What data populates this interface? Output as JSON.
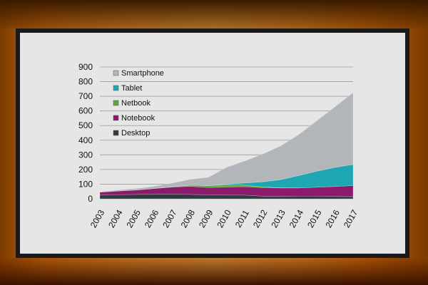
{
  "chart_data": {
    "type": "area",
    "stacked": true,
    "x": [
      "2003",
      "2004",
      "2005",
      "2006",
      "2007",
      "2008",
      "2009",
      "2010",
      "2011",
      "2012",
      "2013",
      "2014",
      "2015",
      "2016",
      "2017"
    ],
    "ylim": [
      0,
      900
    ],
    "yticks": [
      0,
      100,
      200,
      300,
      400,
      500,
      600,
      700,
      800,
      900
    ],
    "grid": true,
    "legend_position": "top-left",
    "series": [
      {
        "name": "Desktop",
        "color": "#2e3b40",
        "values": [
          25,
          28,
          30,
          32,
          32,
          30,
          27,
          25,
          25,
          18,
          18,
          17,
          17,
          16,
          15
        ]
      },
      {
        "name": "Notebook",
        "color": "#8b1a6a",
        "values": [
          20,
          25,
          30,
          38,
          48,
          55,
          50,
          55,
          58,
          58,
          56,
          57,
          62,
          68,
          75
        ]
      },
      {
        "name": "Netbook",
        "color": "#5ea83a",
        "values": [
          0,
          0,
          0,
          0,
          2,
          8,
          12,
          15,
          10,
          5,
          2,
          0,
          0,
          0,
          0
        ]
      },
      {
        "name": "Tablet",
        "color": "#1fa6b3",
        "values": [
          0,
          0,
          0,
          0,
          0,
          0,
          0,
          5,
          15,
          35,
          55,
          85,
          110,
          130,
          145
        ]
      },
      {
        "name": "Smartphone",
        "color": "#b2b6bb",
        "values": [
          3,
          7,
          10,
          15,
          25,
          40,
          58,
          115,
          150,
          190,
          230,
          280,
          345,
          415,
          490
        ]
      }
    ]
  }
}
